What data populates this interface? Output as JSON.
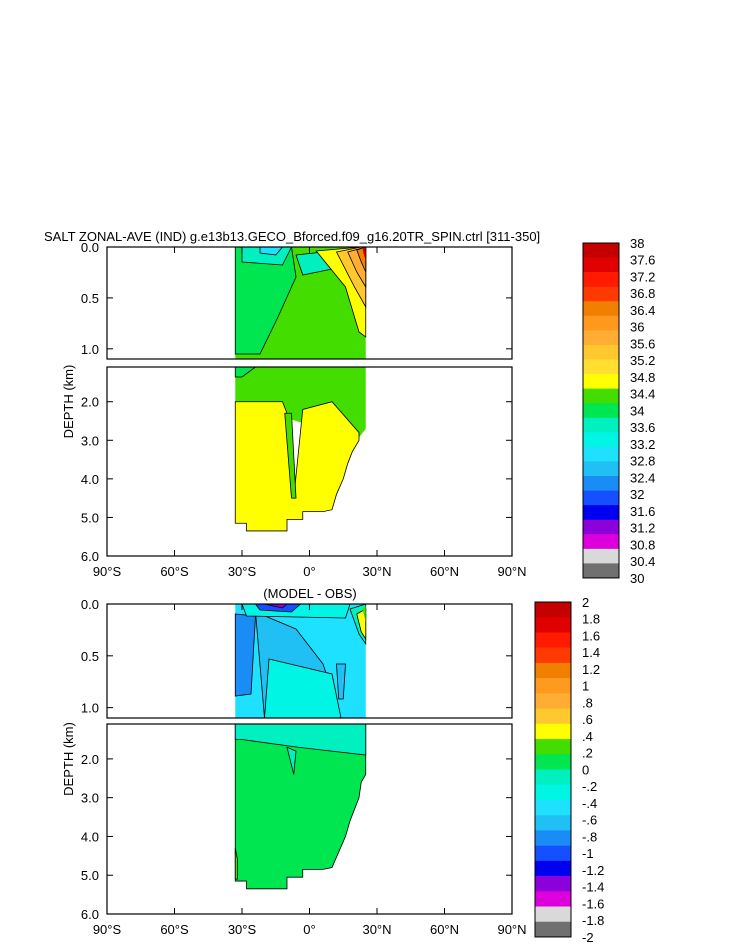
{
  "chart_data": [
    {
      "type": "heatmap",
      "title": "SALT ZONAL-AVE (IND) g.e13b13.GECO_Bforced.f09_g16.20TR_SPIN.ctrl [311-350]",
      "xlabel": "",
      "ylabel": "DEPTH (km)",
      "xlim": [
        -90,
        90
      ],
      "ylim": [
        0,
        6
      ],
      "x_ticks": [
        "90°S",
        "60°S",
        "30°S",
        "0°",
        "30°N",
        "60°N",
        "90°N"
      ],
      "y_ticks_upper": [
        "0.0",
        "0.5",
        "1.0"
      ],
      "y_ticks_lower": [
        "2.0",
        "3.0",
        "4.0",
        "5.0",
        "6.0"
      ],
      "colorbar_labels": [
        "38",
        "37.6",
        "37.2",
        "36.8",
        "36.4",
        "36",
        "35.6",
        "35.2",
        "34.8",
        "34.4",
        "34",
        "33.6",
        "33.2",
        "32.8",
        "32.4",
        "32",
        "31.6",
        "31.2",
        "30.8",
        "30.4",
        "30"
      ],
      "colorbar_colors": [
        "#c40000",
        "#e00000",
        "#ff1a00",
        "#ff3a00",
        "#f28000",
        "#ff9a1f",
        "#ffad33",
        "#ffc82e",
        "#ffe030",
        "#ffff00",
        "#44dd00",
        "#00e650",
        "#00f0c0",
        "#00f5e5",
        "#1ee0ff",
        "#20c0f5",
        "#1a8cf5",
        "#1450ff",
        "#0000f0",
        "#8c00d9",
        "#dd00dd",
        "#d9d9d9",
        "#707070"
      ],
      "colorbar_colors_order": "top-to-bottom"
    },
    {
      "type": "heatmap",
      "title": "(MODEL - OBS)",
      "xlabel": "",
      "ylabel": "DEPTH (km)",
      "xlim": [
        -90,
        90
      ],
      "ylim": [
        0,
        6
      ],
      "x_ticks": [
        "90°S",
        "60°S",
        "30°S",
        "0°",
        "30°N",
        "60°N",
        "90°N"
      ],
      "y_ticks_upper": [
        "0.0",
        "0.5",
        "1.0"
      ],
      "y_ticks_lower": [
        "2.0",
        "3.0",
        "4.0",
        "5.0",
        "6.0"
      ],
      "colorbar_labels": [
        "2",
        "1.8",
        "1.6",
        "1.4",
        "1.2",
        "1",
        ".8",
        ".6",
        ".4",
        ".2",
        "0",
        "-.2",
        "-.4",
        "-.6",
        "-.8",
        "-1",
        "-1.2",
        "-1.4",
        "-1.6",
        "-1.8",
        "-2"
      ],
      "colorbar_colors": [
        "#c40000",
        "#e00000",
        "#ff1a00",
        "#ff3a00",
        "#f28000",
        "#ff9a1f",
        "#ffad33",
        "#ffc82e",
        "#ffff00",
        "#44dd00",
        "#00e650",
        "#00f0c0",
        "#00f5e5",
        "#1ee0ff",
        "#20c0f5",
        "#1a8cf5",
        "#1450ff",
        "#0000f0",
        "#8c00d9",
        "#dd00dd",
        "#d9d9d9",
        "#707070"
      ],
      "colorbar_colors_order": "top-to-bottom"
    }
  ]
}
